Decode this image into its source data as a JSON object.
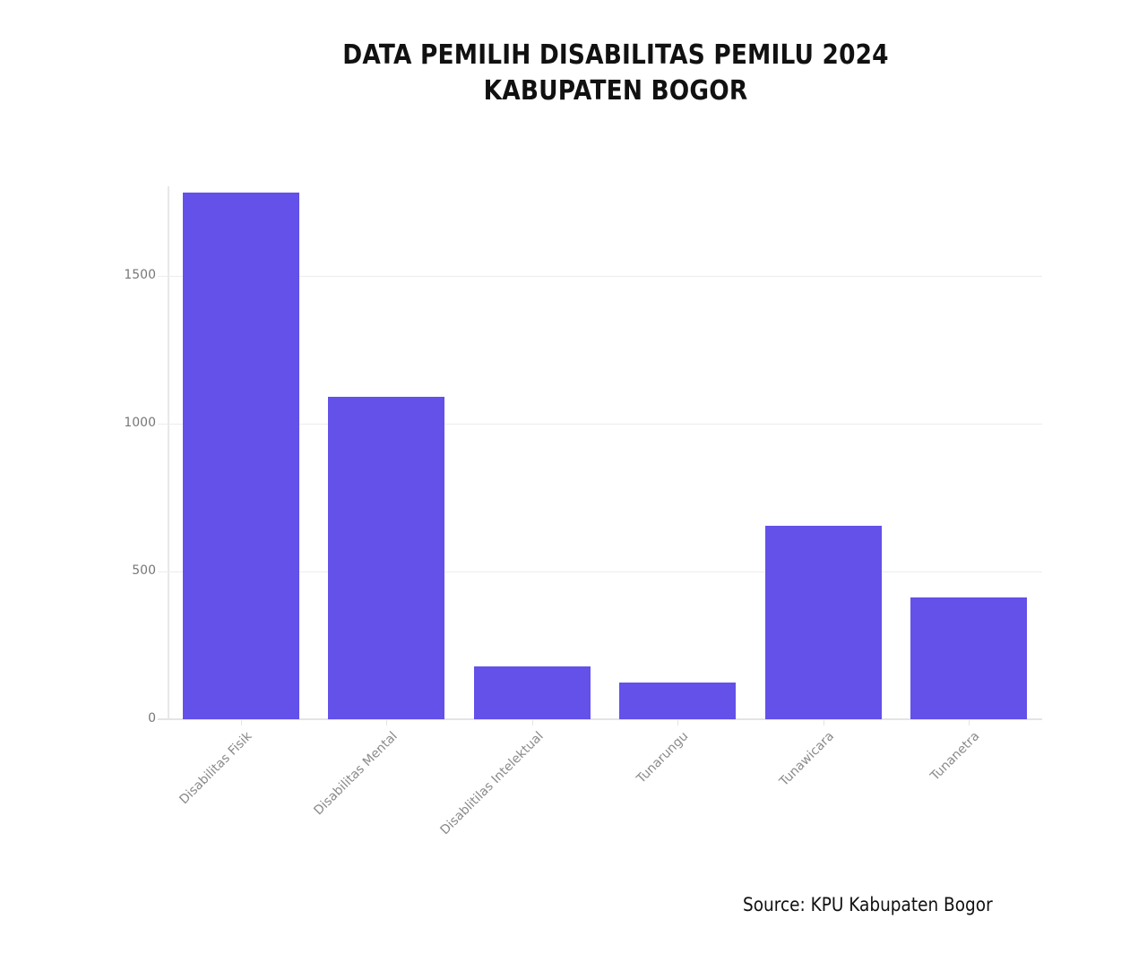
{
  "header": {
    "title_line1": "DATA PEMILIH DISABILITAS PEMILU 2024",
    "title_line2": "KABUPATEN BOGOR"
  },
  "footer": {
    "source": "Source: KPU Kabupaten Bogor"
  },
  "colors": {
    "bar": "#6351E9",
    "grid": "#ececec",
    "tick_text": "#777777"
  },
  "y_ticks": [
    "0",
    "500",
    "1000",
    "1500"
  ],
  "chart_data": {
    "type": "bar",
    "title": "DATA PEMILIH DISABILITAS PEMILU 2024 KABUPATEN BOGOR",
    "categories": [
      "Disabilitas Fisik",
      "Disabilitas Mental",
      "Disablitilas Intelektual",
      "Tunarungu",
      "Tunawicara",
      "Tunanetra"
    ],
    "values": [
      1782,
      1091,
      179,
      124,
      655,
      412
    ],
    "xlabel": "",
    "ylabel": "",
    "ylim": [
      0,
      1800
    ],
    "yticks": [
      0,
      500,
      1000,
      1500
    ],
    "grid": true,
    "legend": null,
    "source": "Source: KPU Kabupaten Bogor"
  }
}
